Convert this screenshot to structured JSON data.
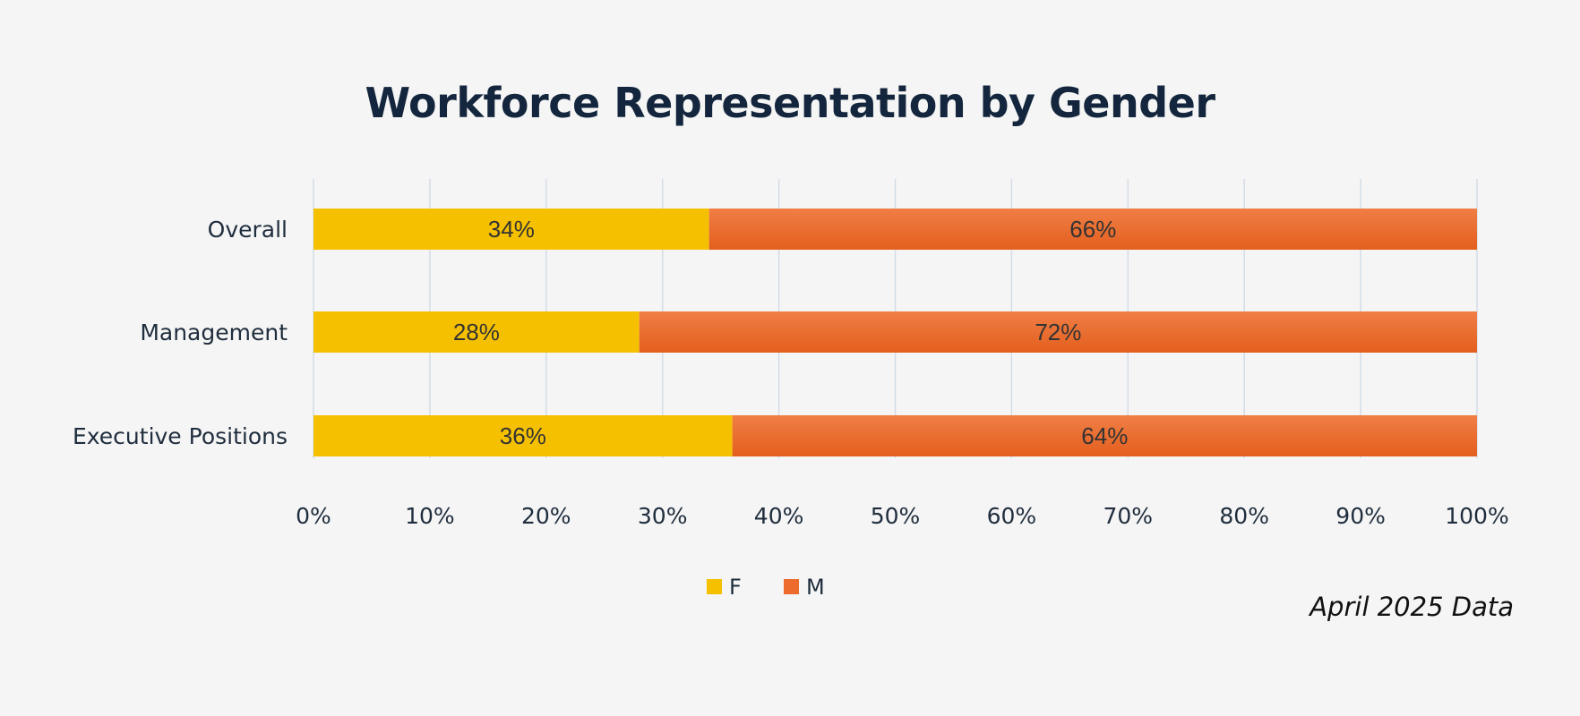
{
  "chart_data": {
    "type": "bar",
    "orientation": "horizontal",
    "stacked": true,
    "title": "Workforce Representation by Gender",
    "categories": [
      "Overall",
      "Management",
      "Executive Positions"
    ],
    "series": [
      {
        "name": "F",
        "values": [
          34,
          28,
          36
        ],
        "color": "#f5c000"
      },
      {
        "name": "M",
        "values": [
          66,
          72,
          64
        ],
        "color": "#ec6b2d"
      }
    ],
    "data_labels": [
      [
        "34%",
        "28%",
        "36%"
      ],
      [
        "66%",
        "72%",
        "64%"
      ]
    ],
    "xlim": [
      0,
      100
    ],
    "x_ticks": [
      0,
      10,
      20,
      30,
      40,
      50,
      60,
      70,
      80,
      90,
      100
    ],
    "x_tick_labels": [
      "0%",
      "10%",
      "20%",
      "30%",
      "40%",
      "50%",
      "60%",
      "70%",
      "80%",
      "90%",
      "100%"
    ],
    "grid": true,
    "legend_position": "bottom"
  },
  "footnote": "April 2025 Data"
}
